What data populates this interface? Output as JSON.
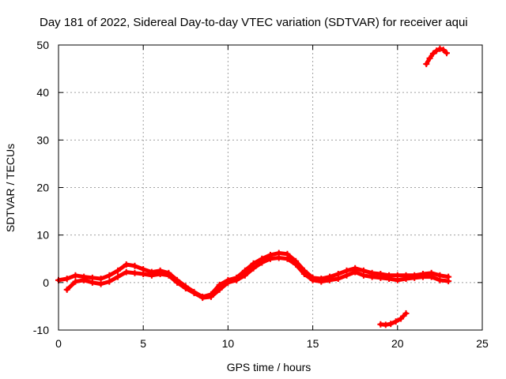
{
  "chart_data": {
    "type": "scatter",
    "title": "Day 181 of 2022, Sidereal Day-to-day VTEC variation (SDTVAR) for receiver aqui",
    "xlabel": "GPS time / hours",
    "ylabel": "SDTVAR / TECUs",
    "xlim": [
      0,
      25
    ],
    "ylim": [
      -10,
      50
    ],
    "xticks": [
      0,
      5,
      10,
      15,
      20,
      25
    ],
    "yticks": [
      -10,
      0,
      10,
      20,
      30,
      40,
      50
    ],
    "grid": true,
    "marker": "plus",
    "series_color": "#ff0000",
    "series": [
      {
        "name": "main-band-upper",
        "x": [
          0.0,
          0.5,
          1.0,
          1.5,
          2.0,
          2.5,
          3.0,
          3.5,
          4.0,
          4.5,
          5.0,
          5.5,
          6.0,
          6.5,
          7.0,
          7.5,
          8.0,
          8.5,
          9.0,
          9.5,
          10.0,
          10.5,
          11.0,
          11.5,
          12.0,
          12.5,
          13.0,
          13.5,
          14.0,
          14.5,
          15.0,
          15.5,
          16.0,
          16.5,
          17.0,
          17.5,
          18.0,
          18.5,
          19.0,
          19.5,
          20.0,
          20.5,
          21.0,
          21.5,
          22.0,
          22.5,
          23.0
        ],
        "y": [
          0.5,
          0.8,
          1.5,
          1.2,
          1.0,
          0.8,
          1.5,
          2.5,
          3.8,
          3.5,
          2.8,
          2.2,
          2.5,
          2.0,
          0.5,
          -0.8,
          -2.0,
          -3.0,
          -2.5,
          -0.5,
          0.5,
          1.0,
          2.5,
          4.0,
          5.0,
          5.8,
          6.2,
          6.0,
          4.5,
          2.5,
          1.0,
          0.8,
          1.2,
          1.8,
          2.5,
          3.0,
          2.5,
          2.0,
          1.8,
          1.5,
          1.5,
          1.5,
          1.5,
          1.8,
          2.0,
          1.5,
          1.2
        ]
      },
      {
        "name": "main-band-lower",
        "x": [
          0.5,
          1.0,
          1.5,
          2.0,
          2.5,
          3.0,
          3.5,
          4.0,
          4.5,
          5.0,
          5.5,
          6.0,
          6.5,
          7.0,
          7.5,
          8.0,
          8.5,
          9.0,
          9.5,
          10.0,
          10.5,
          11.0,
          11.5,
          12.0,
          12.5,
          13.0,
          13.5,
          14.0,
          14.5,
          15.0,
          15.5,
          16.0,
          16.5,
          17.0,
          17.5,
          18.0,
          18.5,
          19.0,
          19.5,
          20.0,
          20.5,
          21.0,
          21.5,
          22.0,
          22.5,
          23.0
        ],
        "y": [
          -1.5,
          0.2,
          0.5,
          0.0,
          -0.3,
          0.2,
          1.2,
          2.2,
          2.0,
          1.8,
          1.5,
          1.8,
          1.5,
          0.0,
          -1.2,
          -2.2,
          -3.2,
          -3.0,
          -1.5,
          0.0,
          0.5,
          1.5,
          3.0,
          4.2,
          5.0,
          5.2,
          5.0,
          3.8,
          1.8,
          0.5,
          0.2,
          0.5,
          0.8,
          1.5,
          2.2,
          1.5,
          1.2,
          1.0,
          0.8,
          0.5,
          0.8,
          1.0,
          1.2,
          1.2,
          0.5,
          0.3
        ]
      },
      {
        "name": "lower-segment",
        "x": [
          19.0,
          19.3,
          19.6,
          19.9,
          20.2,
          20.5
        ],
        "y": [
          -8.8,
          -8.9,
          -8.7,
          -8.2,
          -7.6,
          -6.5
        ]
      },
      {
        "name": "upper-segment",
        "x": [
          21.7,
          21.9,
          22.1,
          22.3,
          22.5,
          22.7,
          22.9
        ],
        "y": [
          46.0,
          47.2,
          48.2,
          48.8,
          49.2,
          49.0,
          48.3
        ]
      }
    ]
  }
}
